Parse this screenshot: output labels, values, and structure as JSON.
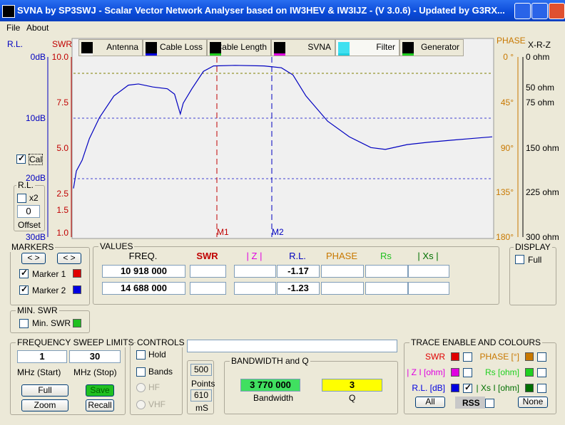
{
  "window": {
    "title": "SVNA by SP3SWJ -  Scalar Vector Network Analyser based on IW3HEV & IW3IJZ - (V 3.0.6) - Updated by G3RX..."
  },
  "menu": [
    "File",
    "About"
  ],
  "tabs": [
    "Antenna",
    "Cable Loss",
    "Cable Length",
    "SVNA",
    "Filter",
    "Generator"
  ],
  "axes": {
    "rl_title": "R.L.",
    "swr_title": "SWR",
    "phase_title": "PHASE",
    "xrz_title": "X-R-Z",
    "rl": [
      "0dB",
      "10dB",
      "20dB",
      "30dB"
    ],
    "swr": [
      "10.0",
      "7.5",
      "5.0",
      "2.5",
      "1.5",
      "1.0"
    ],
    "phase": [
      "0 °",
      "45°",
      "90°",
      "135°",
      "180°"
    ],
    "xrz": [
      "0 ohm",
      "50 ohm",
      "75 ohm",
      "150 ohm",
      "225 ohm",
      "300 ohm"
    ]
  },
  "plot": {
    "markers": [
      "M1",
      "M2"
    ],
    "xlim": [
      1,
      30
    ],
    "ylim": [
      0,
      30
    ],
    "trace": {
      "x": [
        1.0,
        1.2,
        1.6,
        2.1,
        2.8,
        3.8,
        4.8,
        5.5,
        6.5,
        7.5,
        8.0,
        8.4,
        8.6,
        9.2,
        10.0,
        10.7,
        12.2,
        14.2,
        15.4,
        16.2,
        17.1,
        18.6,
        20.1,
        21.6,
        22.6,
        24.1,
        25.6,
        27.0,
        28.5,
        30.0
      ],
      "rl": [
        21.9,
        19.0,
        17.2,
        13.6,
        10.1,
        6.5,
        4.7,
        4.5,
        5.0,
        5.3,
        6.2,
        9.5,
        7.7,
        5.3,
        2.4,
        1.5,
        1.4,
        1.5,
        1.8,
        3.0,
        6.5,
        10.7,
        13.3,
        15.1,
        15.4,
        14.6,
        14.2,
        13.9,
        13.6,
        13.3
      ]
    }
  },
  "cal": "Cal",
  "rl_box": {
    "title": "R.L.",
    "x2": "x2",
    "offset_value": "0",
    "offset": "Offset"
  },
  "markers": {
    "title": "MARKERS",
    "marker1": "Marker 1",
    "marker2": "Marker 2"
  },
  "values": {
    "title": "VALUES",
    "headers": [
      "FREQ.",
      "SWR",
      "| Z |",
      "R.L.",
      "PHASE",
      "Rs",
      "| Xs |"
    ],
    "rows": [
      {
        "freq": "10 918 000",
        "rl": "-1.17"
      },
      {
        "freq": "14 688 000",
        "rl": "-1.23"
      }
    ]
  },
  "display": {
    "title": "DISPLAY",
    "full": "Full"
  },
  "min_swr": {
    "title": "MIN. SWR",
    "label": "Min. SWR"
  },
  "sweep": {
    "title": "FREQUENCY SWEEP LIMITS",
    "start": "1",
    "stop": "30",
    "start_label": "MHz (Start)",
    "stop_label": "MHz (Stop)",
    "full": "Full",
    "save": "Save",
    "zoom": "Zoom",
    "recall": "Recall"
  },
  "controls": {
    "title": "CONTROLS",
    "hold": "Hold",
    "bands": "Bands",
    "hf": "HF",
    "vhf": "VHF",
    "points": "500",
    "points_label": "Points",
    "time": "610",
    "time_label": "mS"
  },
  "bandwidth": {
    "title": "BANDWIDTH and Q",
    "bandwidth": "3 770 000",
    "bandwidth_label": "Bandwidth",
    "q": "3",
    "q_label": "Q"
  },
  "trace_colours": {
    "title": "TRACE ENABLE AND COLOURS",
    "items": [
      {
        "label": "SWR",
        "color": "#e00000",
        "checked": false
      },
      {
        "label": "PHASE [°]",
        "color": "#c87800",
        "checked": false
      },
      {
        "label": "| Z I [ohm]",
        "color": "#e000e0",
        "checked": false
      },
      {
        "label": "Rs [ohm]",
        "color": "#20d020",
        "checked": false
      },
      {
        "label": "R.L. [dB]",
        "color": "#0000e0",
        "checked": true
      },
      {
        "label": "| Xs I [ohm]",
        "color": "#007000",
        "checked": false
      }
    ],
    "all": "All",
    "rss": "RSS",
    "none": "None"
  }
}
